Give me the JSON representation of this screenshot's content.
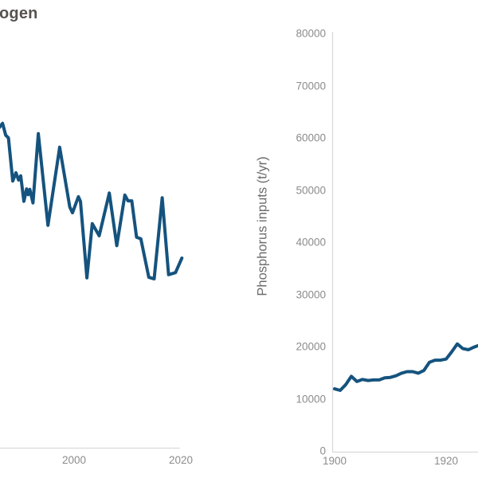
{
  "page": {
    "title_fragment": "ogen",
    "background": "#ffffff"
  },
  "colors": {
    "series_line": "#15537e",
    "axis_line": "#d9d9d9",
    "tick_label": "#8c8c8c",
    "axis_title": "#6b6b6b",
    "title_text": "#57534e"
  },
  "chart_data": [
    {
      "id": "left-panel",
      "type": "line",
      "title_visible_fragment": "ogen",
      "y_axis_visible": false,
      "y_axis_note": "y-axis cropped outside left edge of screenshot; values estimated on same t/yr scale as right panel",
      "x_tick_labels": [
        "2000",
        "2020"
      ],
      "x_ticks": [
        2000,
        2020
      ],
      "x_range_visible": [
        1986,
        2020.3
      ],
      "series": [
        {
          "name": "left-series",
          "points": [
            [
              1986.0,
              61700
            ],
            [
              1986.6,
              62500
            ],
            [
              1987.2,
              60200
            ],
            [
              1987.7,
              59700
            ],
            [
              1988.5,
              51400
            ],
            [
              1989.1,
              53000
            ],
            [
              1989.6,
              51600
            ],
            [
              1990.0,
              52400
            ],
            [
              1990.6,
              47500
            ],
            [
              1991.1,
              49900
            ],
            [
              1991.4,
              48800
            ],
            [
              1991.7,
              49800
            ],
            [
              1992.3,
              47200
            ],
            [
              1993.3,
              60500
            ],
            [
              1995.1,
              42900
            ],
            [
              1997.3,
              57900
            ],
            [
              1999.2,
              46400
            ],
            [
              1999.7,
              45300
            ],
            [
              2000.8,
              48400
            ],
            [
              2001.2,
              47500
            ],
            [
              2002.4,
              32800
            ],
            [
              2003.4,
              43200
            ],
            [
              2004.7,
              40900
            ],
            [
              2006.6,
              49100
            ],
            [
              2008.0,
              39000
            ],
            [
              2009.5,
              48700
            ],
            [
              2010.1,
              47600
            ],
            [
              2010.8,
              47600
            ],
            [
              2011.7,
              40600
            ],
            [
              2012.5,
              40300
            ],
            [
              2014.0,
              32900
            ],
            [
              2015.0,
              32600
            ],
            [
              2016.5,
              48200
            ],
            [
              2017.7,
              33400
            ],
            [
              2019.0,
              33800
            ],
            [
              2020.2,
              36600
            ]
          ]
        }
      ]
    },
    {
      "id": "right-panel",
      "type": "line",
      "ylabel": "Phosphorus inputs (t/yr)",
      "ylim": [
        0,
        80000
      ],
      "y_ticks": [
        0,
        10000,
        20000,
        30000,
        40000,
        50000,
        60000,
        70000,
        80000
      ],
      "y_tick_labels": [
        "0",
        "10000",
        "20000",
        "30000",
        "40000",
        "50000",
        "60000",
        "70000",
        "80000"
      ],
      "x_tick_labels": [
        "1900",
        "1920"
      ],
      "x_ticks": [
        1900,
        1920
      ],
      "x_range_visible": [
        1900,
        1925.8
      ],
      "series": [
        {
          "name": "phosphorus-inputs",
          "points": [
            [
              1900,
              11900
            ],
            [
              1901,
              11600
            ],
            [
              1902,
              12700
            ],
            [
              1903,
              14300
            ],
            [
              1904,
              13300
            ],
            [
              1905,
              13700
            ],
            [
              1906,
              13500
            ],
            [
              1907,
              13600
            ],
            [
              1908,
              13600
            ],
            [
              1909,
              14000
            ],
            [
              1910,
              14100
            ],
            [
              1911,
              14400
            ],
            [
              1912,
              14900
            ],
            [
              1913,
              15200
            ],
            [
              1914,
              15200
            ],
            [
              1915,
              14900
            ],
            [
              1916,
              15400
            ],
            [
              1917,
              17000
            ],
            [
              1918,
              17400
            ],
            [
              1919,
              17400
            ],
            [
              1920,
              17600
            ],
            [
              1921,
              19000
            ],
            [
              1922,
              20500
            ],
            [
              1923,
              19600
            ],
            [
              1924,
              19400
            ],
            [
              1925,
              19900
            ],
            [
              1926,
              20300
            ]
          ]
        }
      ]
    }
  ]
}
